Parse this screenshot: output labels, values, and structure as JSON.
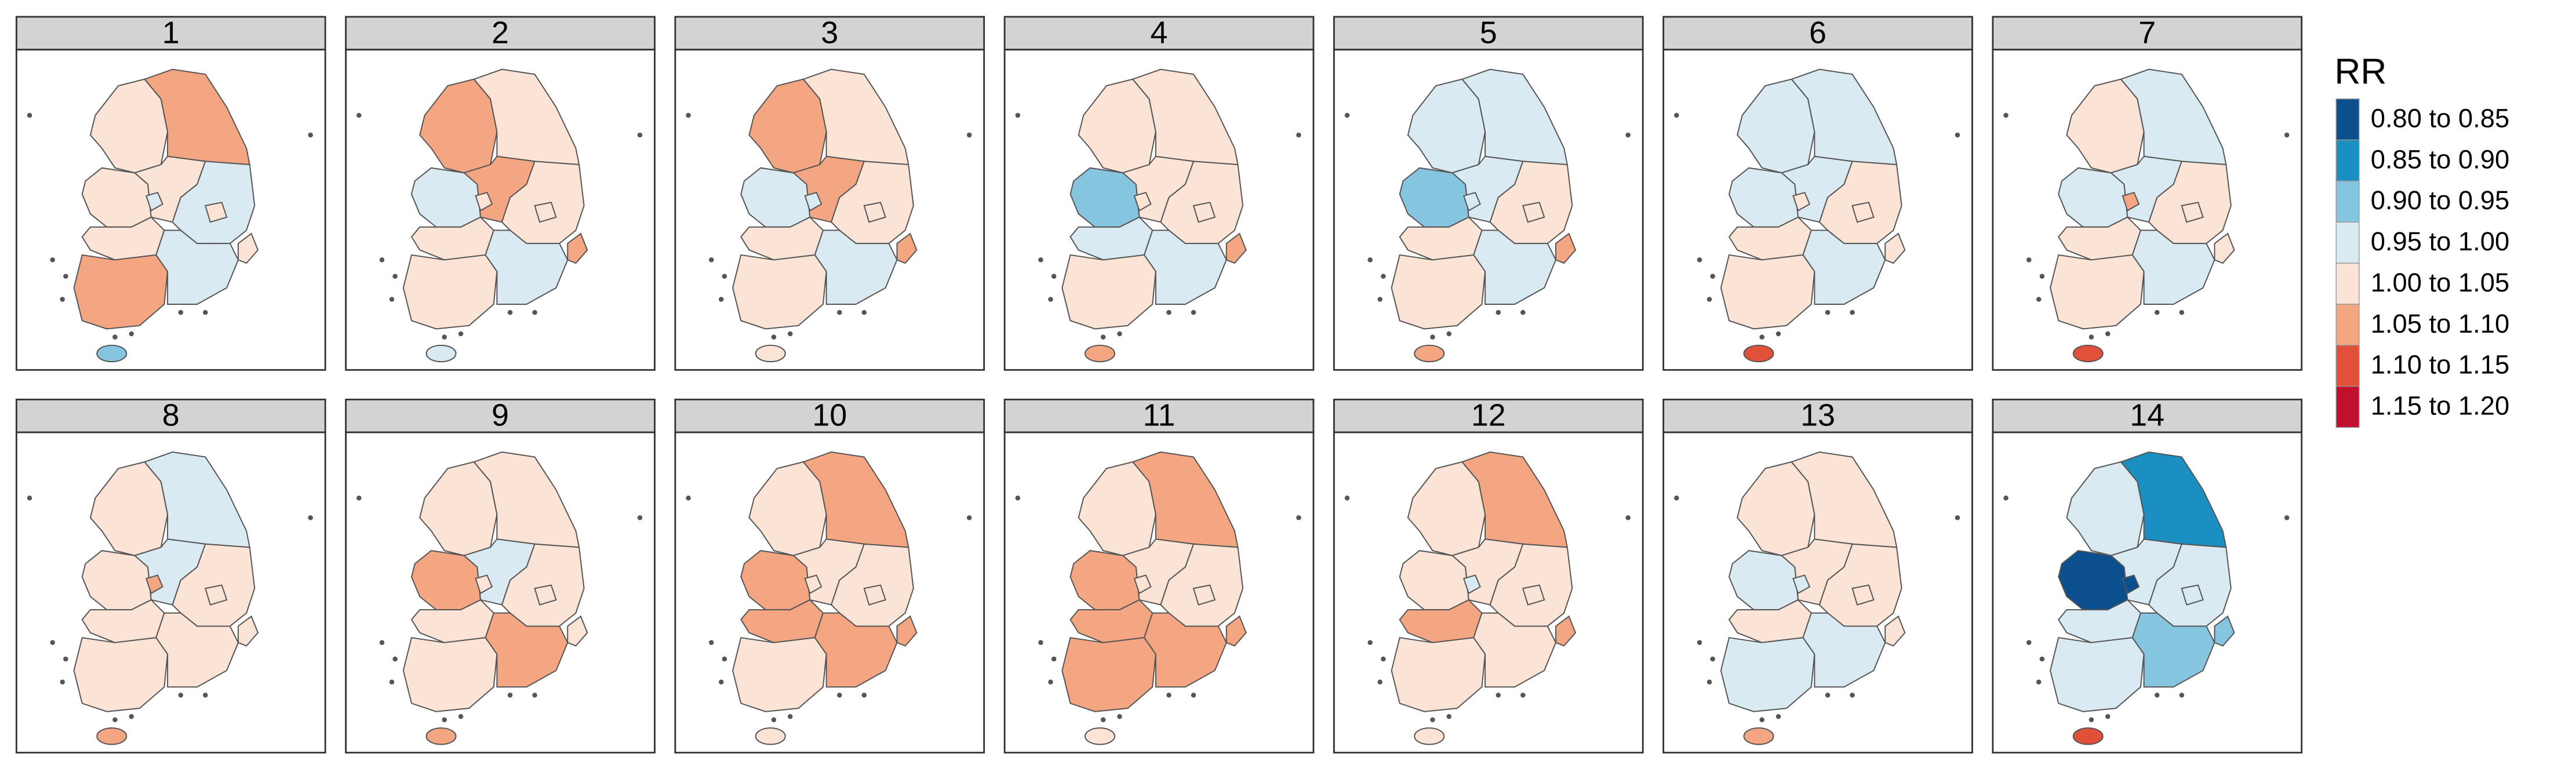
{
  "legend": {
    "title": "RR",
    "items": [
      {
        "label": "0.80 to 0.85",
        "color": "#0b4f8f"
      },
      {
        "label": "0.85 to 0.90",
        "color": "#1c8fc2"
      },
      {
        "label": "0.90 to 0.95",
        "color": "#86c5df"
      },
      {
        "label": "0.95 to 1.00",
        "color": "#d9eaf2"
      },
      {
        "label": "1.00 to 1.05",
        "color": "#fbe3d5"
      },
      {
        "label": "1.05 to 1.10",
        "color": "#f4a582"
      },
      {
        "label": "1.10 to 1.15",
        "color": "#e3503a"
      },
      {
        "label": "1.15 to 1.20",
        "color": "#c0102e"
      }
    ]
  },
  "panels": [
    {
      "label": "1",
      "classes": [
        4,
        5,
        4,
        4,
        3,
        4,
        5,
        3,
        4,
        3,
        4,
        2
      ]
    },
    {
      "label": "2",
      "classes": [
        5,
        4,
        3,
        5,
        4,
        4,
        4,
        4,
        4,
        3,
        5,
        3
      ]
    },
    {
      "label": "3",
      "classes": [
        5,
        4,
        3,
        5,
        3,
        4,
        4,
        4,
        4,
        3,
        5,
        4
      ]
    },
    {
      "label": "4",
      "classes": [
        4,
        4,
        2,
        4,
        4,
        3,
        4,
        4,
        4,
        3,
        5,
        5
      ]
    },
    {
      "label": "5",
      "classes": [
        3,
        3,
        2,
        3,
        3,
        4,
        4,
        4,
        4,
        3,
        5,
        5
      ]
    },
    {
      "label": "6",
      "classes": [
        3,
        3,
        3,
        3,
        4,
        4,
        4,
        4,
        4,
        3,
        4,
        6
      ]
    },
    {
      "label": "7",
      "classes": [
        4,
        3,
        3,
        3,
        5,
        4,
        4,
        4,
        4,
        3,
        4,
        6
      ]
    },
    {
      "label": "8",
      "classes": [
        4,
        3,
        4,
        3,
        5,
        4,
        4,
        4,
        4,
        4,
        4,
        5
      ]
    },
    {
      "label": "9",
      "classes": [
        4,
        4,
        5,
        3,
        4,
        4,
        4,
        4,
        4,
        5,
        4,
        5
      ]
    },
    {
      "label": "10",
      "classes": [
        4,
        5,
        5,
        4,
        4,
        5,
        4,
        4,
        4,
        5,
        5,
        4
      ]
    },
    {
      "label": "11",
      "classes": [
        4,
        5,
        5,
        4,
        4,
        5,
        5,
        4,
        4,
        5,
        5,
        4
      ]
    },
    {
      "label": "12",
      "classes": [
        4,
        5,
        4,
        4,
        3,
        5,
        4,
        4,
        4,
        4,
        5,
        4
      ]
    },
    {
      "label": "13",
      "classes": [
        4,
        4,
        3,
        4,
        3,
        4,
        3,
        4,
        4,
        3,
        4,
        5
      ]
    },
    {
      "label": "14",
      "classes": [
        3,
        1,
        0,
        3,
        0,
        3,
        3,
        3,
        3,
        2,
        2,
        6
      ]
    }
  ]
}
